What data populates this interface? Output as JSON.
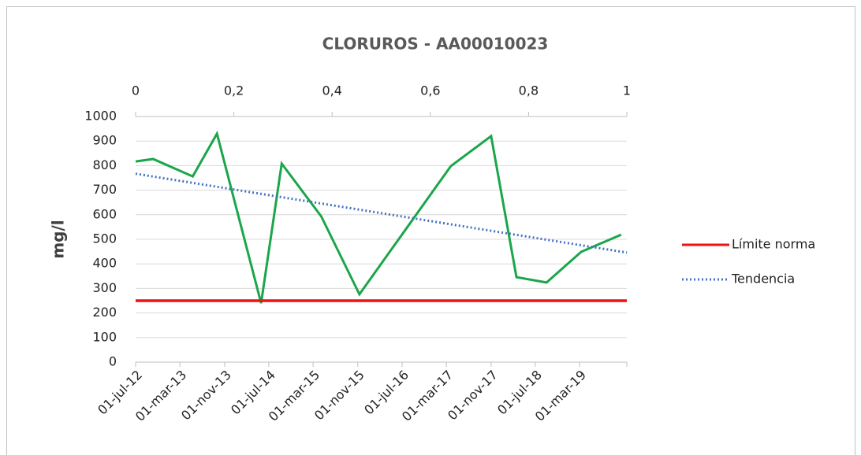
{
  "chart_data": {
    "type": "line",
    "title": "CLORUROS - AA00010023",
    "y_label": "mg/l",
    "xlim": [
      "2012-07-01",
      "2019-11-15"
    ],
    "xticks": [
      {
        "value": "2012-07-01",
        "label": "01-jul-12"
      },
      {
        "value": "2013-03-01",
        "label": "01-mar-13"
      },
      {
        "value": "2013-11-01",
        "label": "01-nov-13"
      },
      {
        "value": "2014-07-01",
        "label": "01-jul-14"
      },
      {
        "value": "2015-03-01",
        "label": "01-mar-15"
      },
      {
        "value": "2015-11-01",
        "label": "01-nov-15"
      },
      {
        "value": "2016-07-01",
        "label": "01-jul-16"
      },
      {
        "value": "2017-03-01",
        "label": "01-mar-17"
      },
      {
        "value": "2017-11-01",
        "label": "01-nov-17"
      },
      {
        "value": "2018-07-01",
        "label": "01-jul-18"
      },
      {
        "value": "2019-03-01",
        "label": "01-mar-19"
      }
    ],
    "ylim": [
      0,
      1000
    ],
    "yticks": [
      0,
      100,
      200,
      300,
      400,
      500,
      600,
      700,
      800,
      900,
      1000
    ],
    "x2lim": [
      0,
      1
    ],
    "x2ticks": [
      0,
      {
        "value": 0.2,
        "label": "0,2"
      },
      {
        "value": 0.4,
        "label": "0,4"
      },
      {
        "value": 0.6,
        "label": "0,6"
      },
      {
        "value": 0.8,
        "label": "0,8"
      },
      1
    ],
    "grid": true,
    "legend": "right",
    "series": [
      {
        "color": "#1aa64a",
        "x": [
          "2012-07-01",
          "2012-10-05",
          "2013-05-10",
          "2013-09-20",
          "2014-05-20",
          "2014-09-10",
          "2015-04-15",
          "2015-11-10",
          "2017-03-25",
          "2017-11-01",
          "2018-03-20",
          "2018-09-01",
          "2019-03-10",
          "2019-10-15"
        ],
        "values": [
          817,
          827,
          756,
          930,
          240,
          808,
          593,
          276,
          798,
          920,
          346,
          324,
          449,
          519
        ]
      },
      {
        "name": "Límite norma",
        "color": "#ee1111",
        "x": [
          "2012-07-01",
          "2019-11-15"
        ],
        "values": [
          250,
          250
        ]
      },
      {
        "name": "Tendencia",
        "color": "#4472c4",
        "dashed": true,
        "x": [
          "2012-07-01",
          "2019-11-15"
        ],
        "values": [
          767,
          446
        ]
      }
    ]
  }
}
